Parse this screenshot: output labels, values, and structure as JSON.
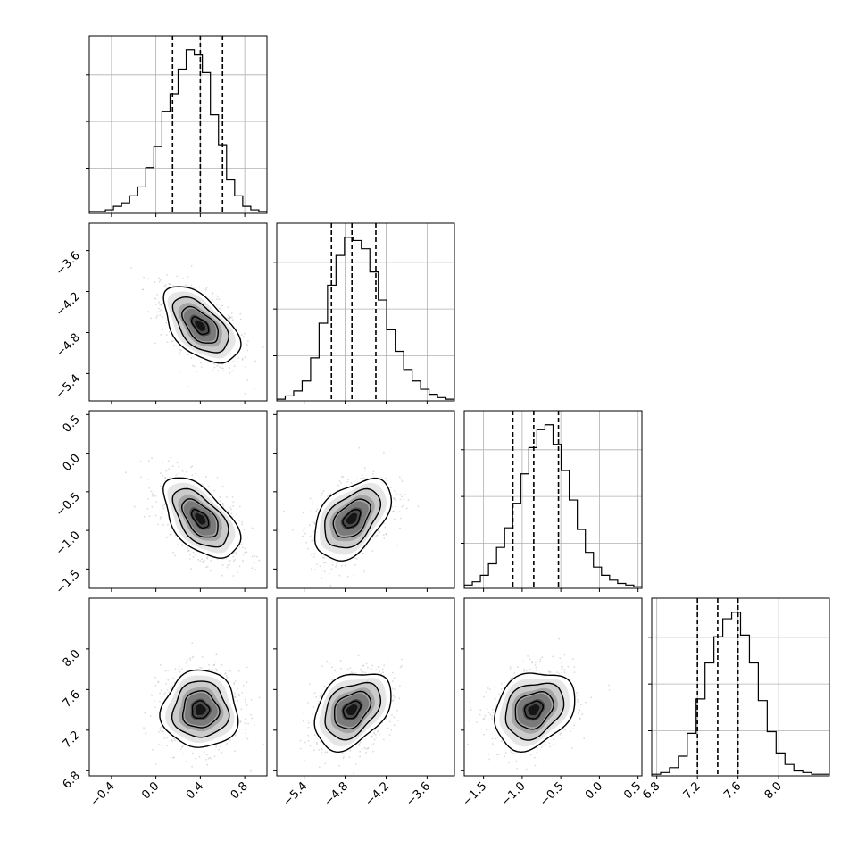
{
  "chart_data": {
    "type": "corner",
    "parameters": [
      {
        "id": "p0",
        "range": [
          -0.6,
          1.0
        ],
        "median": 0.4,
        "q16": 0.15,
        "q84": 0.6,
        "ticks": [
          -0.4,
          0.0,
          0.4,
          0.8
        ],
        "tick_labels": [
          "−0.4",
          "0.0",
          "0.4",
          "0.8"
        ],
        "hist": [
          0.01,
          0.01,
          0.02,
          0.04,
          0.06,
          0.1,
          0.15,
          0.26,
          0.38,
          0.58,
          0.68,
          0.82,
          0.93,
          0.9,
          0.8,
          0.56,
          0.39,
          0.19,
          0.1,
          0.04,
          0.02,
          0.01
        ]
      },
      {
        "id": "p1",
        "range": [
          -5.8,
          -3.2
        ],
        "median": -4.7,
        "q16": -5.0,
        "q84": -4.35,
        "ticks": [
          -5.4,
          -4.8,
          -4.2,
          -3.6
        ],
        "tick_labels": [
          "−5.4",
          "−4.8",
          "−4.2",
          "−3.6"
        ],
        "hist": [
          0.01,
          0.03,
          0.06,
          0.12,
          0.26,
          0.47,
          0.7,
          0.88,
          0.99,
          0.97,
          0.92,
          0.78,
          0.61,
          0.43,
          0.3,
          0.19,
          0.12,
          0.07,
          0.04,
          0.02,
          0.01
        ]
      },
      {
        "id": "p2",
        "range": [
          -1.75,
          0.55
        ],
        "median": -0.85,
        "q16": -1.12,
        "q84": -0.53,
        "ticks": [
          -1.5,
          -1.0,
          -0.5,
          0.0,
          0.5
        ],
        "tick_labels": [
          "−1.5",
          "−1.0",
          "−0.5",
          "0.0",
          "0.5"
        ],
        "hist": [
          0.02,
          0.04,
          0.08,
          0.15,
          0.25,
          0.37,
          0.52,
          0.7,
          0.86,
          0.97,
          1.0,
          0.88,
          0.72,
          0.54,
          0.36,
          0.22,
          0.13,
          0.08,
          0.05,
          0.03,
          0.02,
          0.01
        ]
      },
      {
        "id": "p3",
        "range": [
          6.75,
          8.5
        ],
        "median": 7.4,
        "q16": 7.2,
        "q84": 7.6,
        "ticks": [
          6.8,
          7.2,
          7.6,
          8.0
        ],
        "tick_labels": [
          "6.8",
          "7.2",
          "7.6",
          "8.0"
        ],
        "hist": [
          0.01,
          0.02,
          0.05,
          0.12,
          0.26,
          0.47,
          0.69,
          0.85,
          0.96,
          1.0,
          0.86,
          0.69,
          0.46,
          0.27,
          0.14,
          0.07,
          0.03,
          0.02,
          0.01,
          0.01
        ]
      }
    ],
    "pairs": [
      {
        "x": "p0",
        "y": "p1",
        "mean": [
          0.4,
          -4.7
        ],
        "sd": [
          0.17,
          0.28
        ],
        "rho": -0.55
      },
      {
        "x": "p0",
        "y": "p2",
        "mean": [
          0.4,
          -0.85
        ],
        "sd": [
          0.17,
          0.26
        ],
        "rho": -0.55
      },
      {
        "x": "p1",
        "y": "p2",
        "mean": [
          -4.7,
          -0.85
        ],
        "sd": [
          0.28,
          0.26
        ],
        "rho": 0.45
      },
      {
        "x": "p0",
        "y": "p3",
        "mean": [
          0.4,
          7.4
        ],
        "sd": [
          0.17,
          0.19
        ],
        "rho": 0.0
      },
      {
        "x": "p1",
        "y": "p3",
        "mean": [
          -4.7,
          7.4
        ],
        "sd": [
          0.28,
          0.19
        ],
        "rho": 0.35
      },
      {
        "x": "p2",
        "y": "p3",
        "mean": [
          -0.85,
          7.4
        ],
        "sd": [
          0.26,
          0.19
        ],
        "rho": 0.25
      }
    ],
    "contour_levels_sigma": [
      0.5,
      1.0,
      1.5,
      2.0
    ],
    "quantile_lines": "dashed",
    "grid": true,
    "scatter_color": "#b0b0b0",
    "hist_color": "#000000"
  }
}
